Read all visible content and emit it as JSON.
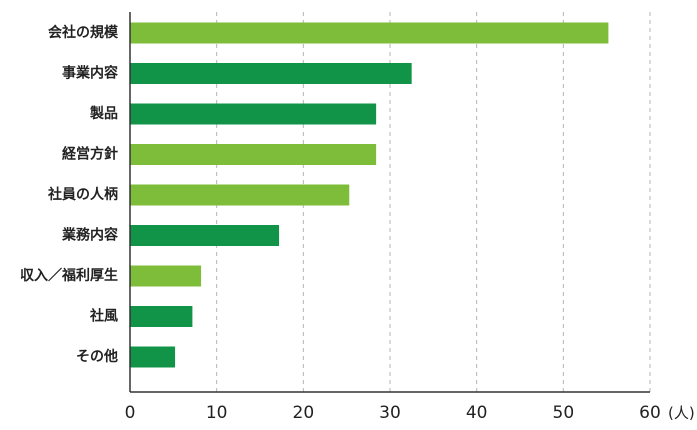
{
  "chart_data": {
    "type": "bar",
    "orientation": "horizontal",
    "categories": [
      "会社の規模",
      "事業内容",
      "製品",
      "経営方針",
      "社員の人柄",
      "業務内容",
      "収入／福利厚生",
      "社風",
      "その他"
    ],
    "values": [
      55.2,
      32.5,
      28.4,
      28.4,
      25.3,
      17.2,
      8.2,
      7.2,
      5.2
    ],
    "bar_colors": [
      "#7dbd3a",
      "#119447",
      "#119447",
      "#7dbd3a",
      "#7dbd3a",
      "#119447",
      "#7dbd3a",
      "#119447",
      "#119447"
    ],
    "xticks": [
      0,
      10,
      20,
      30,
      40,
      50,
      60
    ],
    "xlim": [
      0,
      60
    ],
    "unit_label": "(人)",
    "grid": "vertical dashed",
    "grid_color": "#b3b3b3",
    "axis_color": "#333333",
    "title": "",
    "xlabel": "",
    "ylabel": ""
  }
}
